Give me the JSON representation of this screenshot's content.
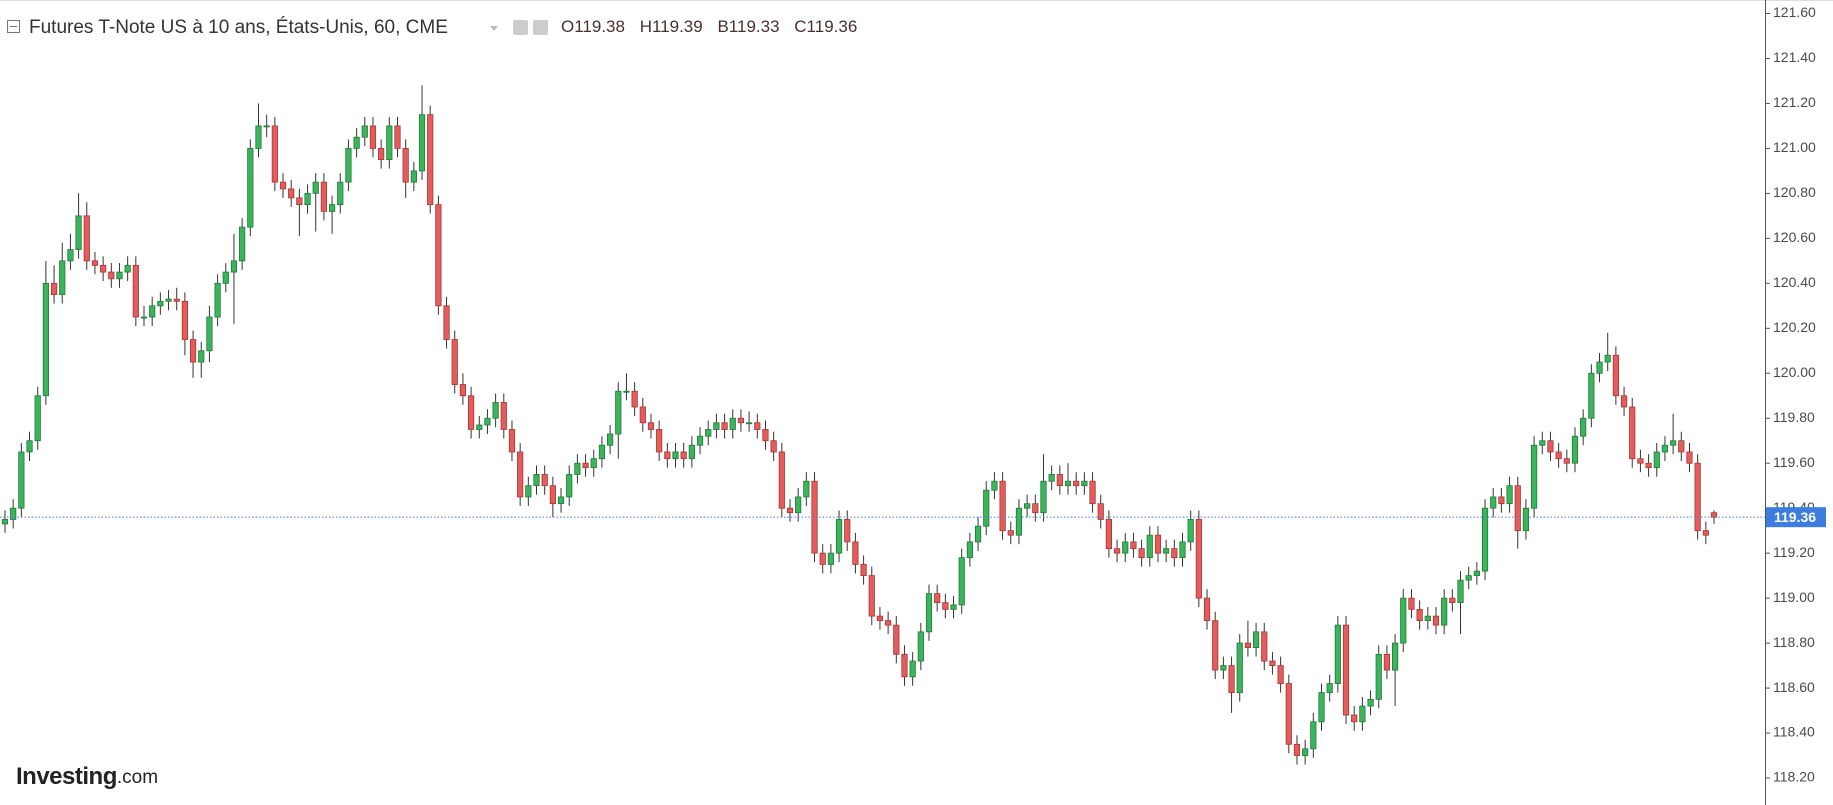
{
  "chart_data": {
    "type": "candlestick",
    "title": "Futures T-Note US à 10 ans, États-Unis, 60, CME",
    "ohlc_labels": [
      "O",
      "H",
      "B",
      "C"
    ],
    "up_color": "#3cb45c",
    "down_color": "#e45d5d",
    "price_line_color": "#3d7de0",
    "ylim": [
      118.08,
      121.66
    ],
    "yticks": [
      {
        "value": 118.2,
        "label": "118.20"
      },
      {
        "value": 118.4,
        "label": "118.40"
      },
      {
        "value": 118.6,
        "label": "118.60"
      },
      {
        "value": 118.8,
        "label": "118.80"
      },
      {
        "value": 119.0,
        "label": "119.00"
      },
      {
        "value": 119.2,
        "label": "119.20"
      },
      {
        "value": 119.4,
        "label": "119.40"
      },
      {
        "value": 119.6,
        "label": "119.60"
      },
      {
        "value": 119.8,
        "label": "119.80"
      },
      {
        "value": 120.0,
        "label": "120.00"
      },
      {
        "value": 120.2,
        "label": "120.20"
      },
      {
        "value": 120.4,
        "label": "120.40"
      },
      {
        "value": 120.6,
        "label": "120.60"
      },
      {
        "value": 120.8,
        "label": "120.80"
      },
      {
        "value": 121.0,
        "label": "121.00"
      },
      {
        "value": 121.2,
        "label": "121.20"
      },
      {
        "value": 121.4,
        "label": "121.40"
      },
      {
        "value": 121.6,
        "label": "121.60"
      }
    ],
    "open": [
      119.33,
      119.35,
      119.4,
      119.65,
      119.7,
      119.9,
      120.4,
      120.35,
      120.5,
      120.55,
      120.7,
      120.5,
      120.48,
      120.45,
      120.42,
      120.45,
      120.48,
      120.25,
      120.25,
      120.3,
      120.32,
      120.33,
      120.32,
      120.15,
      120.05,
      120.1,
      120.25,
      120.4,
      120.45,
      120.5,
      120.65,
      121.0,
      121.1,
      121.1,
      120.85,
      120.82,
      120.78,
      120.75,
      120.8,
      120.85,
      120.72,
      120.75,
      120.85,
      121.0,
      121.05,
      121.1,
      121.0,
      120.95,
      121.1,
      121.0,
      120.85,
      120.9,
      121.15,
      120.75,
      120.3,
      120.15,
      119.95,
      119.9,
      119.75,
      119.77,
      119.8,
      119.87,
      119.75,
      119.65,
      119.45,
      119.5,
      119.55,
      119.5,
      119.42,
      119.45,
      119.55,
      119.6,
      119.58,
      119.62,
      119.68,
      119.73,
      119.92,
      119.92,
      119.85,
      119.78,
      119.75,
      119.65,
      119.62,
      119.65,
      119.62,
      119.68,
      119.72,
      119.75,
      119.78,
      119.75,
      119.8,
      119.78,
      119.78,
      119.75,
      119.7,
      119.65,
      119.4,
      119.38,
      119.45,
      119.52,
      119.2,
      119.15,
      119.2,
      119.35,
      119.25,
      119.15,
      119.1,
      118.92,
      118.9,
      118.88,
      118.75,
      118.65,
      118.72,
      118.85,
      119.02,
      118.98,
      118.95,
      118.97,
      119.18,
      119.25,
      119.32,
      119.48,
      119.52,
      119.3,
      119.28,
      119.4,
      119.42,
      119.38,
      119.52,
      119.55,
      119.5,
      119.52,
      119.5,
      119.52,
      119.42,
      119.35,
      119.22,
      119.2,
      119.25,
      119.22,
      119.18,
      119.28,
      119.2,
      119.22,
      119.18,
      119.25,
      119.35,
      119.0,
      118.9,
      118.68,
      118.7,
      118.58,
      118.8,
      118.78,
      118.85,
      118.72,
      118.7,
      118.62,
      118.35,
      118.3,
      118.33,
      118.45,
      118.58,
      118.62,
      118.88,
      118.48,
      118.45,
      118.52,
      118.55,
      118.75,
      118.68,
      118.8,
      119.0,
      118.95,
      118.9,
      118.92,
      118.88,
      119.0,
      118.98,
      119.08,
      119.1,
      119.12,
      119.4,
      119.45,
      119.42,
      119.5,
      119.3,
      119.4,
      119.68,
      119.7,
      119.65,
      119.62,
      119.6,
      119.72,
      119.8,
      120.0,
      120.05,
      120.08,
      119.9,
      119.85,
      119.62,
      119.6,
      119.58,
      119.65,
      119.68,
      119.7,
      119.65,
      119.6,
      119.3,
      119.38
    ],
    "high": [
      119.39,
      119.44,
      119.69,
      119.74,
      119.94,
      120.5,
      120.48,
      120.58,
      120.62,
      120.8,
      120.76,
      120.54,
      120.52,
      120.49,
      120.49,
      120.52,
      120.52,
      120.3,
      120.34,
      120.36,
      120.37,
      120.38,
      120.36,
      120.19,
      120.14,
      120.3,
      120.44,
      120.49,
      120.62,
      120.69,
      121.04,
      121.2,
      121.15,
      121.14,
      120.89,
      120.86,
      120.82,
      120.84,
      120.89,
      120.89,
      120.79,
      120.89,
      121.04,
      121.09,
      121.14,
      121.14,
      121.04,
      121.14,
      121.14,
      121.04,
      120.94,
      121.28,
      121.19,
      120.79,
      120.34,
      120.19,
      120.0,
      119.94,
      119.81,
      119.84,
      119.91,
      119.91,
      119.79,
      119.69,
      119.54,
      119.59,
      119.59,
      119.54,
      119.49,
      119.59,
      119.64,
      119.64,
      119.66,
      119.72,
      119.77,
      119.96,
      120.0,
      119.96,
      119.89,
      119.82,
      119.79,
      119.69,
      119.69,
      119.69,
      119.72,
      119.76,
      119.79,
      119.82,
      119.82,
      119.84,
      119.84,
      119.83,
      119.82,
      119.79,
      119.74,
      119.69,
      119.44,
      119.49,
      119.56,
      119.56,
      119.24,
      119.24,
      119.39,
      119.39,
      119.29,
      119.19,
      119.14,
      118.96,
      118.94,
      118.92,
      118.79,
      118.76,
      118.89,
      119.06,
      119.06,
      119.02,
      119.01,
      119.22,
      119.29,
      119.36,
      119.52,
      119.56,
      119.56,
      119.34,
      119.44,
      119.46,
      119.46,
      119.64,
      119.59,
      119.59,
      119.6,
      119.56,
      119.56,
      119.56,
      119.46,
      119.39,
      119.26,
      119.29,
      119.29,
      119.26,
      119.32,
      119.32,
      119.26,
      119.26,
      119.29,
      119.39,
      119.39,
      119.04,
      118.94,
      118.74,
      118.74,
      118.84,
      118.9,
      118.89,
      118.89,
      118.76,
      118.74,
      118.66,
      118.39,
      118.37,
      118.49,
      118.62,
      118.66,
      118.92,
      118.92,
      118.52,
      118.56,
      118.59,
      118.79,
      118.79,
      118.84,
      119.04,
      119.04,
      118.99,
      118.96,
      118.96,
      119.04,
      119.04,
      119.12,
      119.14,
      119.16,
      119.44,
      119.49,
      119.49,
      119.54,
      119.54,
      119.44,
      119.72,
      119.74,
      119.74,
      119.69,
      119.66,
      119.76,
      119.84,
      120.04,
      120.09,
      120.18,
      120.12,
      119.94,
      119.89,
      119.66,
      119.64,
      119.69,
      119.72,
      119.82,
      119.74,
      119.69,
      119.64,
      119.34,
      119.39
    ],
    "low": [
      119.29,
      119.31,
      119.36,
      119.61,
      119.66,
      119.86,
      120.31,
      120.31,
      120.46,
      120.51,
      120.46,
      120.44,
      120.41,
      120.38,
      120.38,
      120.41,
      120.21,
      120.21,
      120.21,
      120.26,
      120.28,
      120.28,
      120.08,
      119.98,
      119.98,
      120.05,
      120.21,
      120.36,
      120.22,
      120.46,
      120.61,
      120.96,
      121.05,
      120.81,
      120.78,
      120.74,
      120.61,
      120.71,
      120.63,
      120.68,
      120.62,
      120.71,
      120.81,
      120.96,
      121.01,
      120.96,
      120.91,
      120.91,
      120.96,
      120.78,
      120.81,
      120.86,
      120.71,
      120.26,
      120.11,
      119.91,
      119.86,
      119.71,
      119.71,
      119.73,
      119.76,
      119.71,
      119.61,
      119.41,
      119.41,
      119.46,
      119.46,
      119.36,
      119.38,
      119.41,
      119.51,
      119.54,
      119.54,
      119.58,
      119.64,
      119.62,
      119.88,
      119.81,
      119.74,
      119.71,
      119.61,
      119.58,
      119.58,
      119.58,
      119.58,
      119.64,
      119.68,
      119.71,
      119.71,
      119.71,
      119.74,
      119.74,
      119.71,
      119.66,
      119.61,
      119.36,
      119.34,
      119.34,
      119.41,
      119.16,
      119.11,
      119.11,
      119.16,
      119.21,
      119.11,
      119.06,
      118.88,
      118.86,
      118.84,
      118.71,
      118.61,
      118.61,
      118.68,
      118.81,
      118.94,
      118.91,
      118.91,
      118.93,
      119.14,
      119.21,
      119.28,
      119.44,
      119.26,
      119.24,
      119.24,
      119.36,
      119.34,
      119.34,
      119.48,
      119.46,
      119.46,
      119.46,
      119.46,
      119.38,
      119.31,
      119.18,
      119.16,
      119.16,
      119.18,
      119.14,
      119.14,
      119.16,
      119.16,
      119.14,
      119.14,
      119.21,
      118.96,
      118.86,
      118.64,
      118.64,
      118.49,
      118.54,
      118.74,
      118.74,
      118.68,
      118.66,
      118.58,
      118.31,
      118.26,
      118.26,
      118.29,
      118.41,
      118.54,
      118.58,
      118.44,
      118.41,
      118.41,
      118.48,
      118.51,
      118.64,
      118.52,
      118.76,
      118.91,
      118.86,
      118.86,
      118.84,
      118.84,
      118.94,
      118.84,
      119.04,
      119.06,
      119.08,
      119.36,
      119.38,
      119.38,
      119.22,
      119.26,
      119.36,
      119.64,
      119.61,
      119.58,
      119.56,
      119.56,
      119.68,
      119.76,
      119.96,
      120.01,
      119.86,
      119.81,
      119.58,
      119.56,
      119.54,
      119.54,
      119.61,
      119.64,
      119.61,
      119.56,
      119.26,
      119.24,
      119.33
    ],
    "close": [
      119.35,
      119.4,
      119.65,
      119.7,
      119.9,
      120.4,
      120.35,
      120.5,
      120.55,
      120.7,
      120.5,
      120.48,
      120.45,
      120.42,
      120.45,
      120.48,
      120.25,
      120.25,
      120.3,
      120.32,
      120.33,
      120.32,
      120.15,
      120.05,
      120.1,
      120.25,
      120.4,
      120.45,
      120.5,
      120.65,
      121.0,
      121.1,
      121.1,
      120.85,
      120.82,
      120.78,
      120.75,
      120.8,
      120.85,
      120.72,
      120.75,
      120.85,
      121.0,
      121.05,
      121.1,
      121.0,
      120.95,
      121.1,
      121.0,
      120.85,
      120.9,
      121.15,
      120.75,
      120.3,
      120.15,
      119.95,
      119.9,
      119.75,
      119.77,
      119.8,
      119.87,
      119.75,
      119.65,
      119.45,
      119.5,
      119.55,
      119.5,
      119.42,
      119.45,
      119.55,
      119.6,
      119.58,
      119.62,
      119.68,
      119.73,
      119.92,
      119.92,
      119.85,
      119.78,
      119.75,
      119.65,
      119.62,
      119.65,
      119.62,
      119.68,
      119.72,
      119.75,
      119.78,
      119.75,
      119.8,
      119.78,
      119.78,
      119.75,
      119.7,
      119.65,
      119.4,
      119.38,
      119.45,
      119.52,
      119.2,
      119.15,
      119.2,
      119.35,
      119.25,
      119.15,
      119.1,
      118.92,
      118.9,
      118.88,
      118.75,
      118.65,
      118.72,
      118.85,
      119.02,
      118.98,
      118.95,
      118.97,
      119.18,
      119.25,
      119.32,
      119.48,
      119.52,
      119.3,
      119.28,
      119.4,
      119.42,
      119.38,
      119.52,
      119.55,
      119.5,
      119.52,
      119.5,
      119.52,
      119.42,
      119.35,
      119.22,
      119.2,
      119.25,
      119.22,
      119.18,
      119.28,
      119.2,
      119.22,
      119.18,
      119.25,
      119.35,
      119.0,
      118.9,
      118.68,
      118.7,
      118.58,
      118.8,
      118.78,
      118.85,
      118.72,
      118.7,
      118.62,
      118.35,
      118.3,
      118.33,
      118.45,
      118.58,
      118.62,
      118.88,
      118.48,
      118.45,
      118.52,
      118.55,
      118.75,
      118.68,
      118.8,
      119.0,
      118.95,
      118.9,
      118.92,
      118.88,
      119.0,
      118.98,
      119.08,
      119.1,
      119.12,
      119.4,
      119.45,
      119.42,
      119.5,
      119.3,
      119.4,
      119.68,
      119.7,
      119.65,
      119.62,
      119.6,
      119.72,
      119.8,
      120.0,
      120.05,
      120.08,
      119.9,
      119.85,
      119.62,
      119.6,
      119.58,
      119.65,
      119.68,
      119.7,
      119.65,
      119.6,
      119.3,
      119.28,
      119.36
    ]
  },
  "logo": {
    "brand": "Investing",
    "suffix": ".com"
  }
}
